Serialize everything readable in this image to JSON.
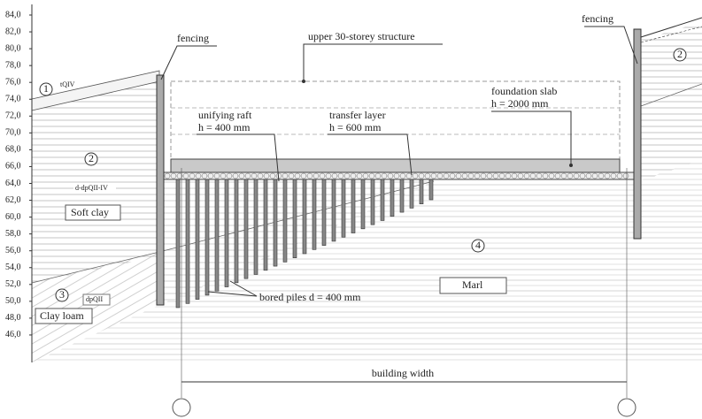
{
  "elevation_axis": {
    "labels": [
      "84,0",
      "82,0",
      "80,0",
      "78,0",
      "76,0",
      "74,0",
      "72,0",
      "70,0",
      "68,0",
      "66,0",
      "64,0",
      "62,0",
      "60,0",
      "58,0",
      "56,0",
      "54,0",
      "52,0",
      "50,0",
      "48,0",
      "46,0"
    ]
  },
  "annotations": {
    "fencing_left": "fencing",
    "fencing_right": "fencing",
    "upper_structure": "upper 30-storey structure",
    "foundation_slab": [
      "foundation slab",
      "h = 2000 mm"
    ],
    "unifying_raft": [
      "unifying raft",
      "h = 400 mm"
    ],
    "transfer_layer": [
      "transfer layer",
      "h = 600 mm"
    ],
    "bored_piles": "bored piles d = 400 mm",
    "building_width": "building width"
  },
  "soils": [
    {
      "number": "1",
      "index": "tQIV"
    },
    {
      "number": "2",
      "index": "d-dpQII-IV",
      "name": "Soft clay"
    },
    {
      "number": "3",
      "index": "dpQII",
      "name": "Clay loam"
    },
    {
      "number": "4",
      "name": "Marl"
    }
  ]
}
